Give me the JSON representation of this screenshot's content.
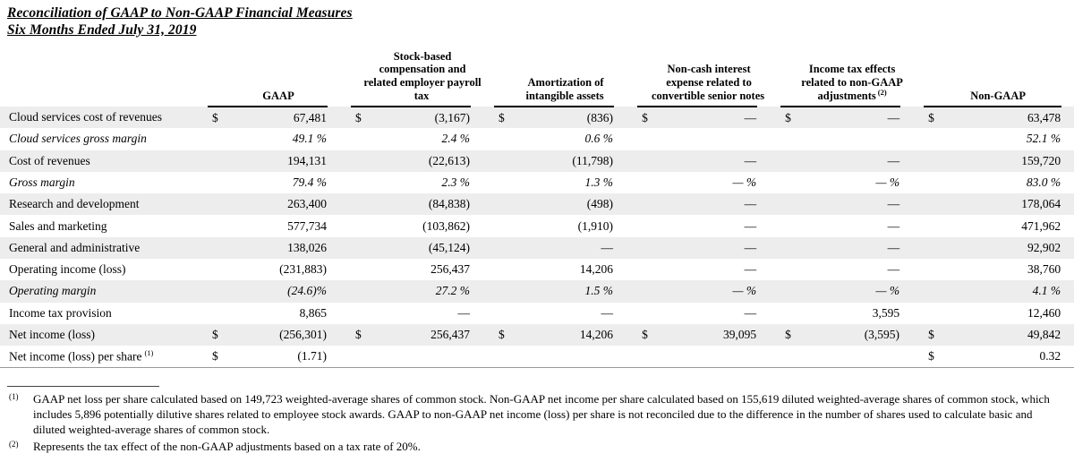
{
  "page": {
    "title_line1": "Reconciliation of GAAP to Non-GAAP Financial Measures",
    "title_line2": "Six Months Ended July 31, 2019"
  },
  "table": {
    "columns": [
      {
        "label": "GAAP",
        "sup": ""
      },
      {
        "label": "Stock-based\ncompensation and\nrelated employer payroll\ntax",
        "sup": ""
      },
      {
        "label": "Amortization of\nintangible assets",
        "sup": ""
      },
      {
        "label": "Non-cash interest\nexpense related to\nconvertible senior notes",
        "sup": ""
      },
      {
        "label": "Income tax effects\nrelated to non-GAAP\nadjustments",
        "sup": "(2)"
      },
      {
        "label": "Non-GAAP",
        "sup": ""
      }
    ],
    "rows": [
      {
        "label": "Cloud services cost of revenues",
        "sup": "",
        "italic": false,
        "shaded": true,
        "cells": [
          [
            "$",
            "67,481"
          ],
          [
            "$",
            "(3,167)"
          ],
          [
            "$",
            "(836)"
          ],
          [
            "$",
            "—"
          ],
          [
            "$",
            "—"
          ],
          [
            "$",
            "63,478"
          ]
        ]
      },
      {
        "label": "Cloud services gross margin",
        "sup": "",
        "italic": true,
        "shaded": false,
        "cells": [
          [
            "",
            "49.1 %"
          ],
          [
            "",
            "2.4 %"
          ],
          [
            "",
            "0.6 %"
          ],
          [
            "",
            ""
          ],
          [
            "",
            ""
          ],
          [
            "",
            "52.1 %"
          ]
        ]
      },
      {
        "label": "Cost of revenues",
        "sup": "",
        "italic": false,
        "shaded": true,
        "cells": [
          [
            "",
            "194,131"
          ],
          [
            "",
            "(22,613)"
          ],
          [
            "",
            "(11,798)"
          ],
          [
            "",
            "—"
          ],
          [
            "",
            "—"
          ],
          [
            "",
            "159,720"
          ]
        ]
      },
      {
        "label": "Gross margin",
        "sup": "",
        "italic": true,
        "shaded": false,
        "cells": [
          [
            "",
            "79.4 %"
          ],
          [
            "",
            "2.3 %"
          ],
          [
            "",
            "1.3 %"
          ],
          [
            "",
            "— %"
          ],
          [
            "",
            "— %"
          ],
          [
            "",
            "83.0 %"
          ]
        ]
      },
      {
        "label": "Research and development",
        "sup": "",
        "italic": false,
        "shaded": true,
        "cells": [
          [
            "",
            "263,400"
          ],
          [
            "",
            "(84,838)"
          ],
          [
            "",
            "(498)"
          ],
          [
            "",
            "—"
          ],
          [
            "",
            "—"
          ],
          [
            "",
            "178,064"
          ]
        ]
      },
      {
        "label": "Sales and marketing",
        "sup": "",
        "italic": false,
        "shaded": false,
        "cells": [
          [
            "",
            "577,734"
          ],
          [
            "",
            "(103,862)"
          ],
          [
            "",
            "(1,910)"
          ],
          [
            "",
            "—"
          ],
          [
            "",
            "—"
          ],
          [
            "",
            "471,962"
          ]
        ]
      },
      {
        "label": "General and administrative",
        "sup": "",
        "italic": false,
        "shaded": true,
        "cells": [
          [
            "",
            "138,026"
          ],
          [
            "",
            "(45,124)"
          ],
          [
            "",
            "—"
          ],
          [
            "",
            "—"
          ],
          [
            "",
            "—"
          ],
          [
            "",
            "92,902"
          ]
        ]
      },
      {
        "label": "Operating income (loss)",
        "sup": "",
        "italic": false,
        "shaded": false,
        "cells": [
          [
            "",
            "(231,883)"
          ],
          [
            "",
            "256,437"
          ],
          [
            "",
            "14,206"
          ],
          [
            "",
            "—"
          ],
          [
            "",
            "—"
          ],
          [
            "",
            "38,760"
          ]
        ]
      },
      {
        "label": "Operating margin",
        "sup": "",
        "italic": true,
        "shaded": true,
        "cells": [
          [
            "",
            "(24.6)%"
          ],
          [
            "",
            "27.2 %"
          ],
          [
            "",
            "1.5 %"
          ],
          [
            "",
            "— %"
          ],
          [
            "",
            "— %"
          ],
          [
            "",
            "4.1 %"
          ]
        ]
      },
      {
        "label": "Income tax provision",
        "sup": "",
        "italic": false,
        "shaded": false,
        "cells": [
          [
            "",
            "8,865"
          ],
          [
            "",
            "—"
          ],
          [
            "",
            "—"
          ],
          [
            "",
            "—"
          ],
          [
            "",
            "3,595"
          ],
          [
            "",
            "12,460"
          ]
        ]
      },
      {
        "label": "Net income (loss)",
        "sup": "",
        "italic": false,
        "shaded": true,
        "cells": [
          [
            "$",
            "(256,301)"
          ],
          [
            "$",
            "256,437"
          ],
          [
            "$",
            "14,206"
          ],
          [
            "$",
            "39,095"
          ],
          [
            "$",
            "(3,595)"
          ],
          [
            "$",
            "49,842"
          ]
        ]
      },
      {
        "label": "Net income (loss) per share",
        "sup": "(1)",
        "italic": false,
        "shaded": false,
        "cells": [
          [
            "$",
            "(1.71)"
          ],
          [
            "",
            ""
          ],
          [
            "",
            ""
          ],
          [
            "",
            ""
          ],
          [
            "",
            ""
          ],
          [
            "$",
            "0.32"
          ]
        ]
      }
    ]
  },
  "footnotes": [
    {
      "marker": "(1)",
      "text": "GAAP net loss per share calculated based on 149,723 weighted-average shares of common stock. Non-GAAP net income per share calculated based on 155,619 diluted weighted-average shares of common stock, which includes 5,896 potentially dilutive shares related to employee stock awards. GAAP to non-GAAP net income (loss) per share is not reconciled due to the difference in the number of shares used to calculate basic and diluted weighted-average shares of common stock."
    },
    {
      "marker": "(2)",
      "text": "Represents the tax effect of the non-GAAP adjustments based on a tax rate of 20%."
    }
  ]
}
